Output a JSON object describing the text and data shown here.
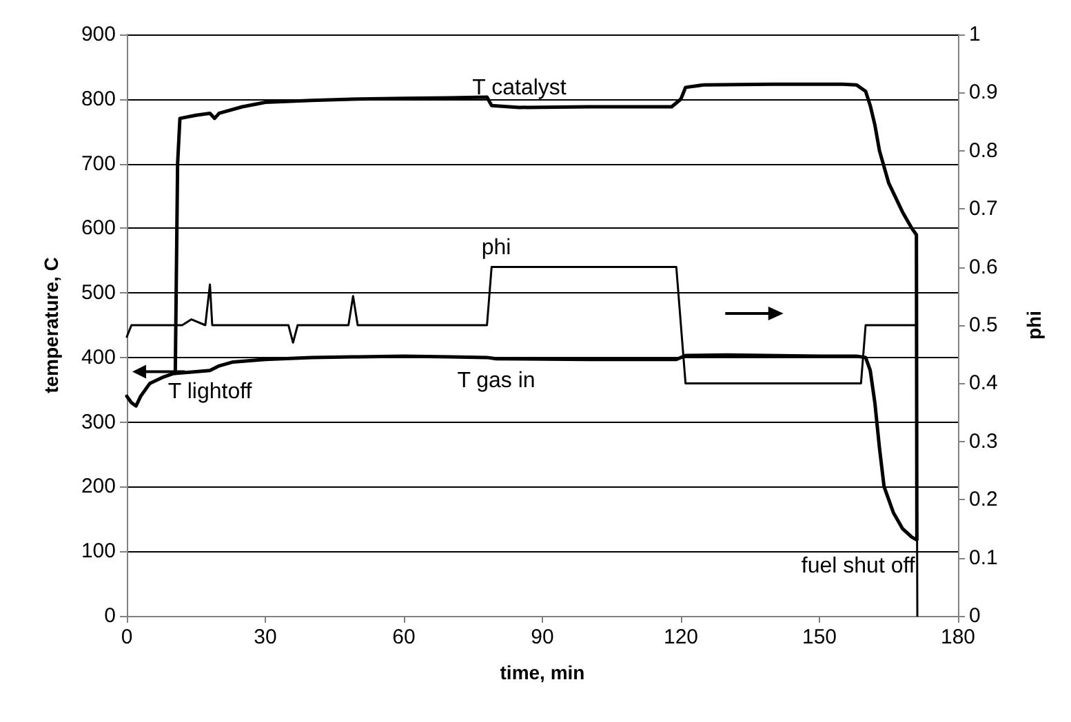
{
  "chart_data": {
    "type": "line",
    "xlabel": "time, min",
    "ylabel": "temperature, C",
    "y2label": "phi",
    "xlim": [
      0,
      180
    ],
    "xticks": [
      0,
      30,
      60,
      90,
      120,
      150,
      180
    ],
    "ylim": [
      0,
      900
    ],
    "yticks": [
      0,
      100,
      200,
      300,
      400,
      500,
      600,
      700,
      800,
      900
    ],
    "y2lim": [
      0,
      1
    ],
    "y2ticks": [
      0,
      0.1,
      0.2,
      0.3,
      0.4,
      0.5,
      0.6,
      0.7,
      0.8,
      0.9,
      1
    ],
    "grid": "y",
    "legend": false,
    "marker": "none",
    "series": [
      {
        "name": "T catalyst",
        "color": "#000000",
        "line_style": "solid",
        "x": [
          10.5,
          11,
          11.5,
          15,
          18,
          19,
          20,
          25,
          30,
          40,
          50,
          60,
          70,
          78,
          79,
          85,
          100,
          110,
          118,
          120,
          121,
          125,
          140,
          155,
          158,
          160,
          161,
          162,
          163,
          165,
          168,
          170,
          171,
          171.1
        ],
        "values": [
          378,
          700,
          770,
          775,
          778,
          770,
          778,
          788,
          795,
          798,
          800,
          801,
          802,
          803,
          790,
          787,
          788,
          788,
          788,
          800,
          818,
          822,
          823,
          823,
          822,
          812,
          790,
          760,
          720,
          670,
          625,
          600,
          590,
          118
        ]
      },
      {
        "name": "T gas in",
        "color": "#000000",
        "line_style": "solid",
        "x": [
          0,
          1,
          2,
          3,
          5,
          8,
          10,
          15,
          18,
          20,
          23,
          30,
          40,
          50,
          60,
          70,
          78,
          80,
          100,
          119,
          121,
          130,
          150,
          158,
          160,
          161,
          162,
          163,
          164,
          166,
          168,
          170,
          171
        ],
        "values": [
          340,
          330,
          325,
          340,
          360,
          370,
          375,
          378,
          380,
          387,
          393,
          397,
          400,
          401,
          402,
          401,
          400,
          398,
          397,
          397,
          403,
          404,
          402,
          402,
          400,
          380,
          330,
          260,
          200,
          160,
          135,
          122,
          118
        ]
      },
      {
        "name": "phi",
        "color": "#000000",
        "line_style": "solid",
        "axis": "y2",
        "x": [
          0,
          1,
          10,
          12,
          14,
          17,
          18,
          18.5,
          20,
          25,
          35,
          36,
          37,
          48,
          49,
          50,
          78,
          79,
          80,
          100,
          119,
          121,
          159,
          160,
          171,
          171.2
        ],
        "values": [
          0.48,
          0.5,
          0.5,
          0.5,
          0.51,
          0.5,
          0.57,
          0.5,
          0.5,
          0.5,
          0.5,
          0.47,
          0.5,
          0.5,
          0.55,
          0.5,
          0.5,
          0.6,
          0.6,
          0.6,
          0.6,
          0.4,
          0.4,
          0.5,
          0.5,
          0
        ]
      }
    ],
    "annotations": [
      "T lightoff",
      "fuel shut off"
    ]
  }
}
